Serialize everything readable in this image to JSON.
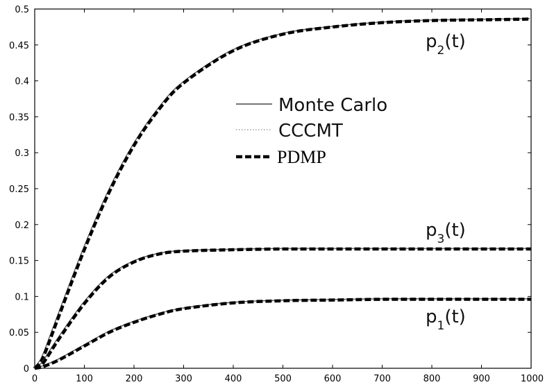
{
  "chart_data": {
    "type": "line",
    "title": "",
    "xlabel": "",
    "ylabel": "",
    "xlim": [
      0,
      1000
    ],
    "ylim": [
      0,
      0.5
    ],
    "x_ticks": [
      "0",
      "100",
      "200",
      "300",
      "400",
      "500",
      "600",
      "700",
      "800",
      "900",
      "1000"
    ],
    "y_ticks": [
      "0",
      "0.05",
      "0.1",
      "0.15",
      "0.2",
      "0.25",
      "0.3",
      "0.35",
      "0.4",
      "0.45",
      "0.5"
    ],
    "grid": false,
    "legend_position": "center",
    "legend": [
      {
        "label": "Monte Carlo",
        "style": "solid"
      },
      {
        "label": "CCCMT",
        "style": "dotted"
      },
      {
        "label": "PDMP",
        "style": "dashed"
      }
    ],
    "curve_labels": [
      {
        "base": "p",
        "sub": "2",
        "suffix": "(t)"
      },
      {
        "base": "p",
        "sub": "3",
        "suffix": "(t)"
      },
      {
        "base": "p",
        "sub": "1",
        "suffix": "(t)"
      }
    ],
    "x": [
      0,
      10,
      20,
      50,
      100,
      150,
      200,
      250,
      300,
      400,
      500,
      600,
      700,
      800,
      900,
      1000
    ],
    "series": [
      {
        "curve": "p2",
        "values": [
          0.0,
          0.007,
          0.02,
          0.075,
          0.165,
          0.245,
          0.31,
          0.36,
          0.397,
          0.442,
          0.465,
          0.475,
          0.481,
          0.484,
          0.485,
          0.486
        ]
      },
      {
        "curve": "p3",
        "values": [
          0.0,
          0.003,
          0.01,
          0.042,
          0.09,
          0.127,
          0.148,
          0.159,
          0.163,
          0.165,
          0.166,
          0.166,
          0.166,
          0.166,
          0.166,
          0.166
        ]
      },
      {
        "curve": "p1",
        "values": [
          0.0,
          0.001,
          0.003,
          0.012,
          0.031,
          0.05,
          0.064,
          0.075,
          0.083,
          0.091,
          0.094,
          0.095,
          0.096,
          0.096,
          0.096,
          0.096
        ]
      }
    ]
  }
}
